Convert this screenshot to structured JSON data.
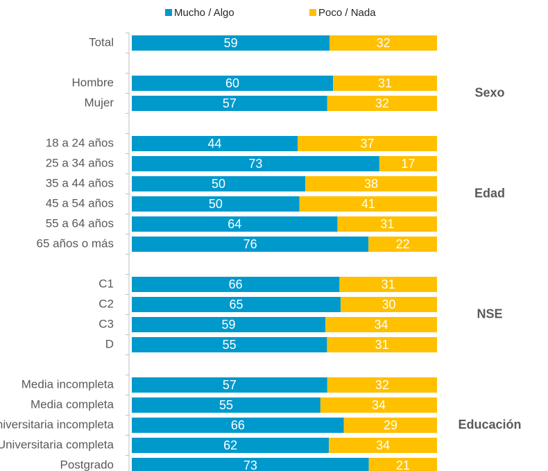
{
  "chart_data": {
    "type": "stacked-bar-100",
    "categories": [
      "Total",
      null,
      "Hombre",
      "Mujer",
      null,
      "18 a 24 años",
      "25 a 34 años",
      "35 a 44 años",
      "45 a 54 años",
      "55 a 64 años",
      "65 años o más",
      null,
      "C1",
      "C2",
      "C3",
      "D",
      null,
      "Media incompleta",
      "Media completa",
      "Universitaria incompleta",
      "Universitaria completa",
      "Postgrado"
    ],
    "groups": [
      "Sexo",
      "Edad",
      "NSE",
      "Educación"
    ],
    "series": [
      {
        "name": "Mucho / Algo",
        "color": "#0099cc",
        "values": [
          59,
          null,
          60,
          57,
          null,
          44,
          73,
          50,
          50,
          64,
          76,
          null,
          66,
          65,
          59,
          55,
          null,
          57,
          55,
          66,
          62,
          73
        ]
      },
      {
        "name": "Poco / Nada",
        "color": "#ffc000",
        "values": [
          32,
          null,
          31,
          32,
          null,
          37,
          17,
          38,
          41,
          31,
          22,
          null,
          31,
          30,
          34,
          31,
          null,
          32,
          34,
          29,
          34,
          21
        ]
      }
    ],
    "legend": "top"
  }
}
